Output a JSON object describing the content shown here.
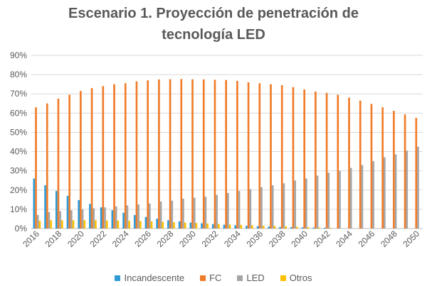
{
  "chart_data": {
    "type": "bar",
    "title": "Escenario 1. Proyección de penetración de tecnología LED",
    "title_lines": [
      "Escenario 1. Proyección de penetración de",
      "tecnología LED"
    ],
    "xlabel": "",
    "ylabel": "",
    "ylim": [
      0,
      0.9
    ],
    "yticks": [
      "0%",
      "10%",
      "20%",
      "30%",
      "40%",
      "50%",
      "60%",
      "70%",
      "80%",
      "90%"
    ],
    "grid": true,
    "legend_position": "bottom",
    "categories": [
      2016,
      2017,
      2018,
      2019,
      2020,
      2021,
      2022,
      2023,
      2024,
      2025,
      2026,
      2027,
      2028,
      2029,
      2030,
      2031,
      2032,
      2033,
      2034,
      2035,
      2036,
      2037,
      2038,
      2039,
      2040,
      2041,
      2042,
      2043,
      2044,
      2045,
      2046,
      2047,
      2048,
      2049,
      2050
    ],
    "x_tick_labels": [
      "2016",
      "2018",
      "2020",
      "2022",
      "2024",
      "2026",
      "2028",
      "2030",
      "2032",
      "2034",
      "2036",
      "2038",
      "2040",
      "2042",
      "2044",
      "2046",
      "2048",
      "2050"
    ],
    "series": [
      {
        "name": "Incandescente",
        "color": "#2E9BD6",
        "values": [
          0.26,
          0.225,
          0.195,
          0.17,
          0.148,
          0.128,
          0.11,
          0.095,
          0.082,
          0.07,
          0.06,
          0.051,
          0.043,
          0.037,
          0.031,
          0.027,
          0.023,
          0.02,
          0.017,
          0.014,
          0.012,
          0.01,
          0.008,
          0.007,
          0.006,
          0.005,
          0.004,
          0.0,
          0.0,
          0.0,
          0.0,
          0.0,
          0.0,
          0.0,
          0.0
        ]
      },
      {
        "name": "FC",
        "color": "#F07C2A",
        "values": [
          0.63,
          0.65,
          0.675,
          0.695,
          0.715,
          0.73,
          0.74,
          0.75,
          0.755,
          0.765,
          0.77,
          0.775,
          0.776,
          0.777,
          0.776,
          0.775,
          0.773,
          0.772,
          0.767,
          0.76,
          0.755,
          0.75,
          0.745,
          0.735,
          0.723,
          0.712,
          0.705,
          0.695,
          0.68,
          0.665,
          0.648,
          0.63,
          0.612,
          0.593,
          0.575
        ]
      },
      {
        "name": "LED",
        "color": "#A5A5A5",
        "values": [
          0.07,
          0.085,
          0.09,
          0.095,
          0.1,
          0.105,
          0.11,
          0.115,
          0.12,
          0.125,
          0.13,
          0.14,
          0.145,
          0.155,
          0.16,
          0.165,
          0.175,
          0.185,
          0.195,
          0.205,
          0.215,
          0.225,
          0.235,
          0.25,
          0.26,
          0.275,
          0.29,
          0.3,
          0.315,
          0.33,
          0.35,
          0.37,
          0.385,
          0.405,
          0.425
        ]
      },
      {
        "name": "Otros",
        "color": "#FFC000",
        "values": [
          0.04,
          0.043,
          0.043,
          0.043,
          0.043,
          0.043,
          0.042,
          0.041,
          0.04,
          0.039,
          0.037,
          0.035,
          0.033,
          0.031,
          0.029,
          0.026,
          0.024,
          0.021,
          0.019,
          0.017,
          0.015,
          0.013,
          0.011,
          0.009,
          0.007,
          0.005,
          0.004,
          0.0,
          0.0,
          0.0,
          0.0,
          0.0,
          0.0,
          0.0,
          0.0
        ]
      }
    ]
  }
}
